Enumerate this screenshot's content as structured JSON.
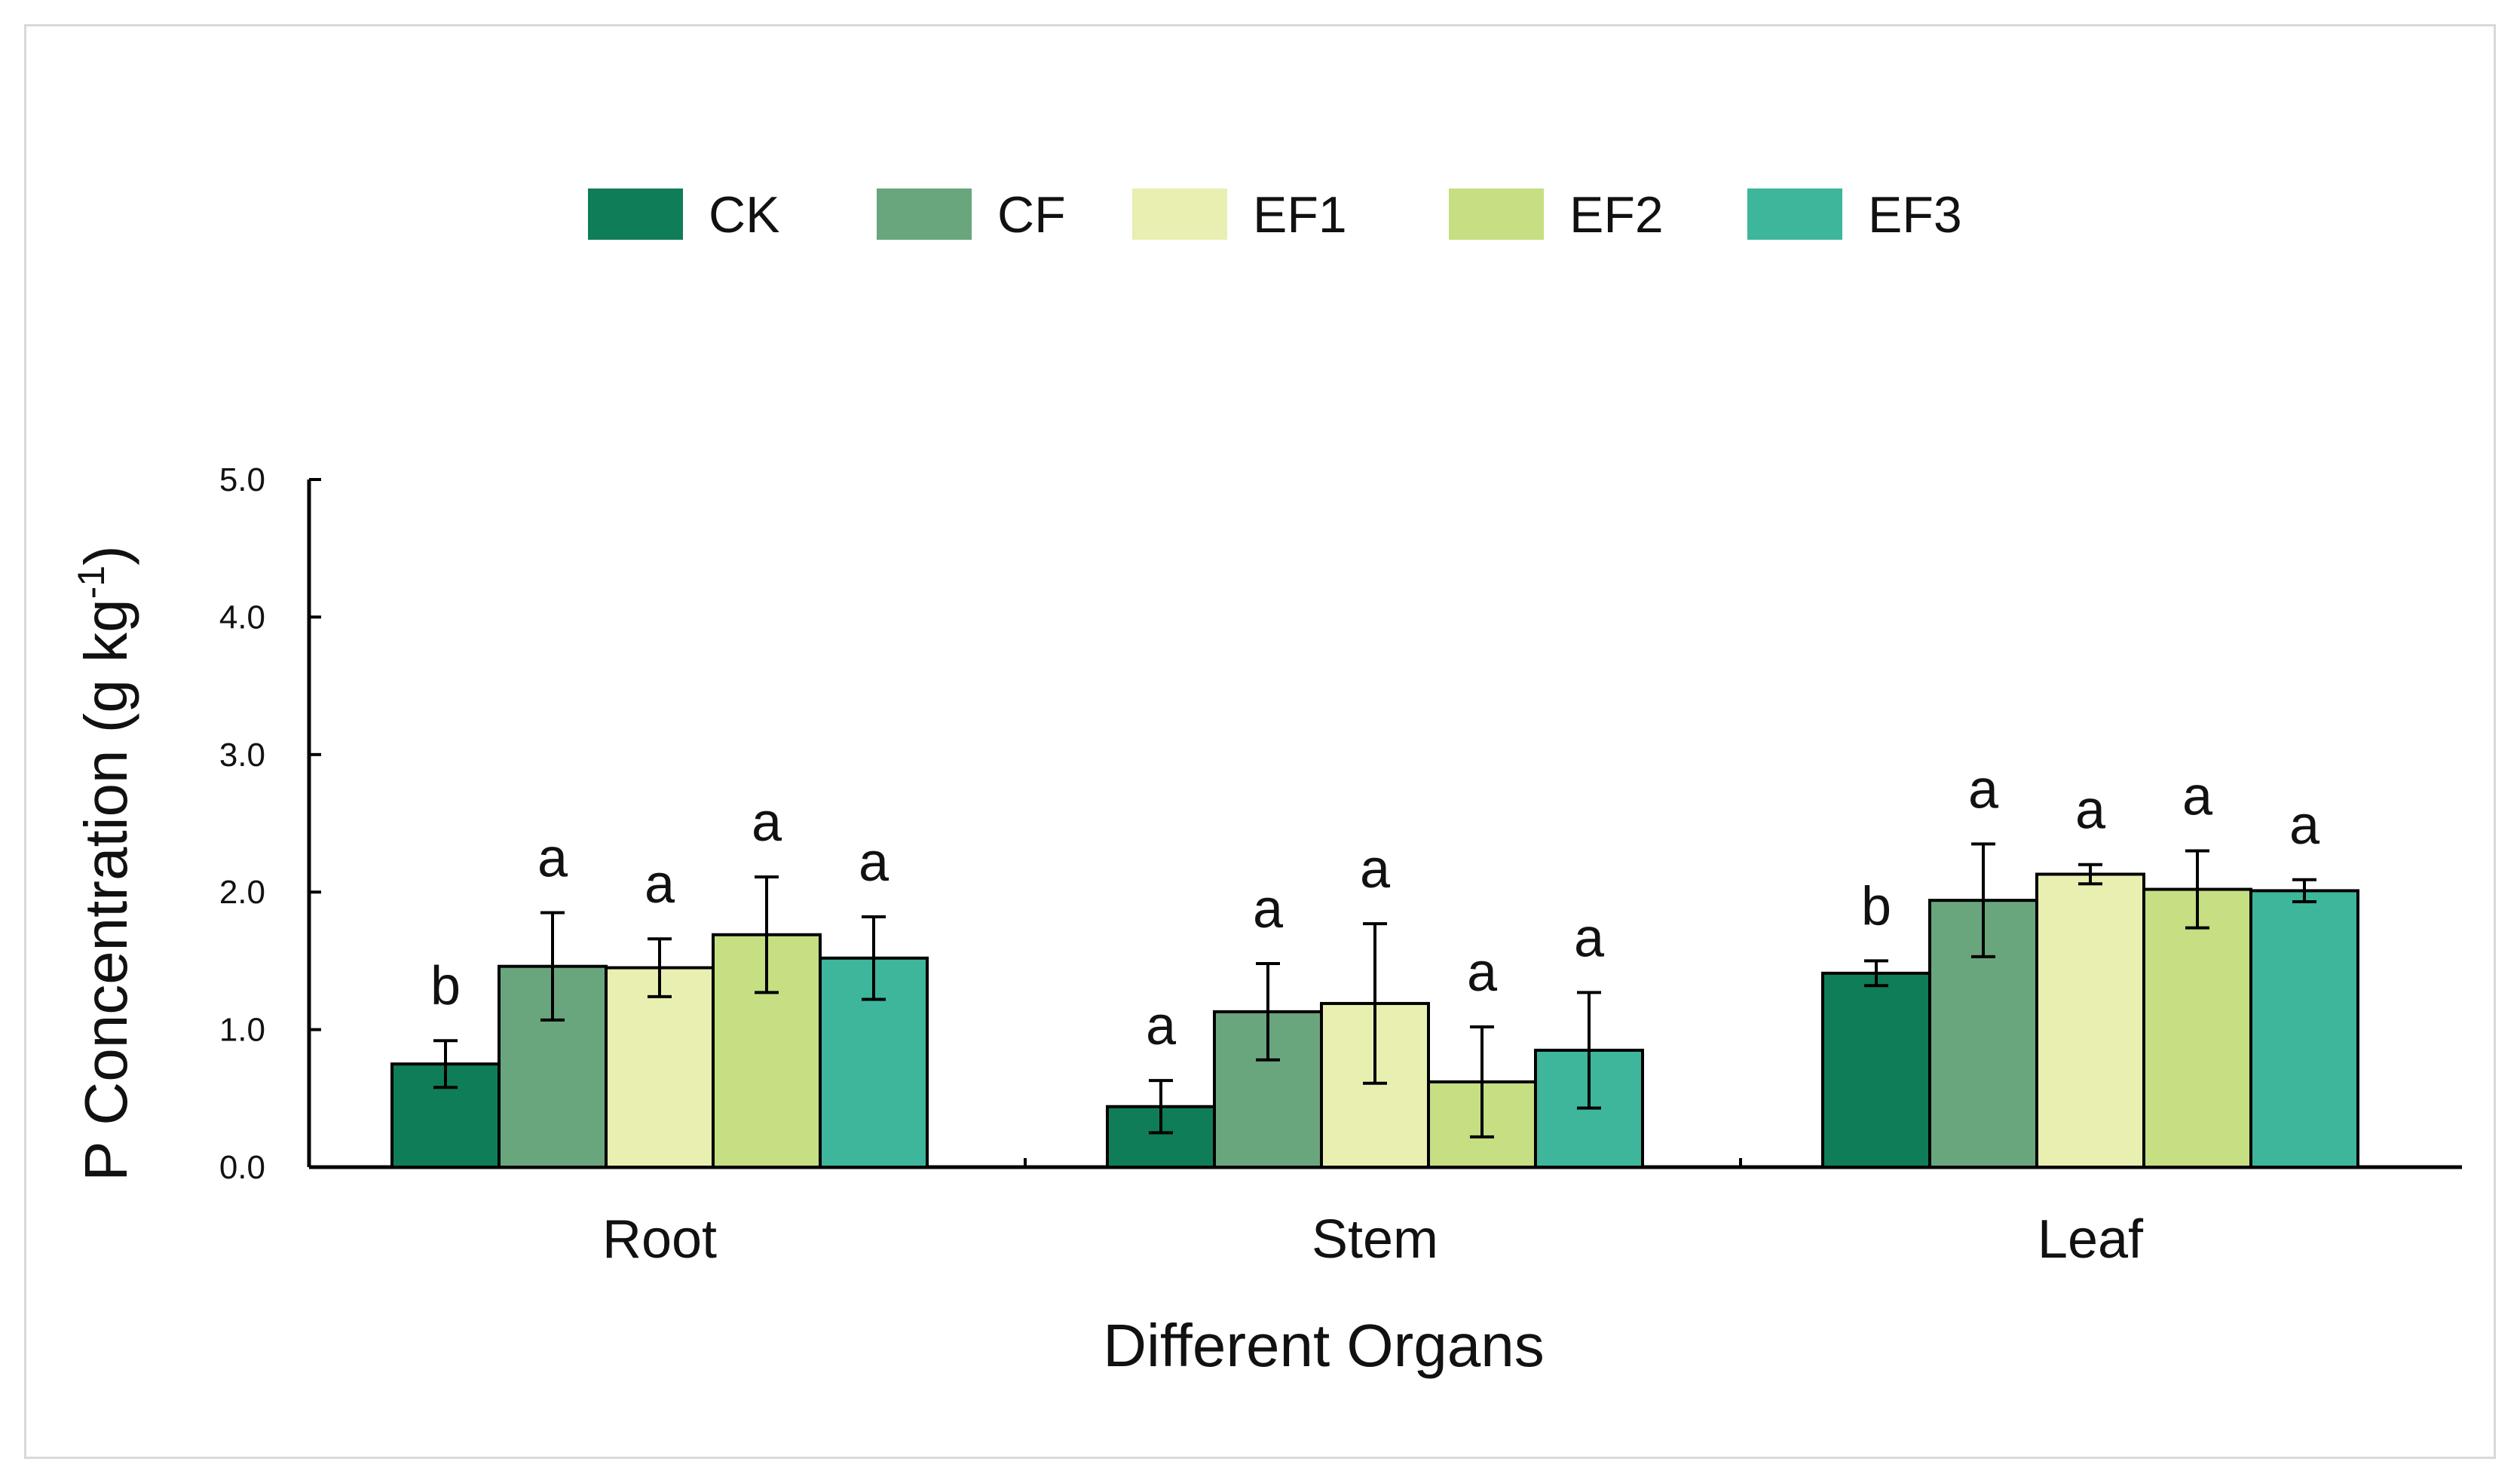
{
  "chart_data": {
    "type": "bar",
    "title": "",
    "xlabel": "Different Organs",
    "ylabel": "P Concentration (g kg",
    "ylabel_superscript": "-1",
    "ylabel_close": ")",
    "ylim": [
      0,
      5
    ],
    "yticks": [
      "0.0",
      "1.0",
      "2.0",
      "3.0",
      "4.0",
      "5.0"
    ],
    "categories": [
      "Root",
      "Stem",
      "Leaf"
    ],
    "legend_position": "top-center",
    "series": [
      {
        "name": "CK",
        "color": "#0f7d57",
        "values": [
          0.75,
          0.44,
          1.41
        ],
        "errors": [
          0.17,
          0.19,
          0.09
        ],
        "labels": [
          "b",
          "a",
          "b"
        ]
      },
      {
        "name": "CF",
        "color": "#6aa67d",
        "values": [
          1.46,
          1.13,
          1.94
        ],
        "errors": [
          0.39,
          0.35,
          0.41
        ],
        "labels": [
          "a",
          "a",
          "a"
        ]
      },
      {
        "name": "EF1",
        "color": "#e9efb0",
        "values": [
          1.45,
          1.19,
          2.13
        ],
        "errors": [
          0.21,
          0.58,
          0.07
        ],
        "labels": [
          "a",
          "a",
          "a"
        ]
      },
      {
        "name": "EF2",
        "color": "#c5df82",
        "values": [
          1.69,
          0.62,
          2.02
        ],
        "errors": [
          0.42,
          0.4,
          0.28
        ],
        "labels": [
          "a",
          "a",
          "a"
        ]
      },
      {
        "name": "EF3",
        "color": "#3db69b",
        "values": [
          1.52,
          0.85,
          2.01
        ],
        "errors": [
          0.3,
          0.42,
          0.08
        ],
        "labels": [
          "a",
          "a",
          "a"
        ]
      }
    ]
  }
}
